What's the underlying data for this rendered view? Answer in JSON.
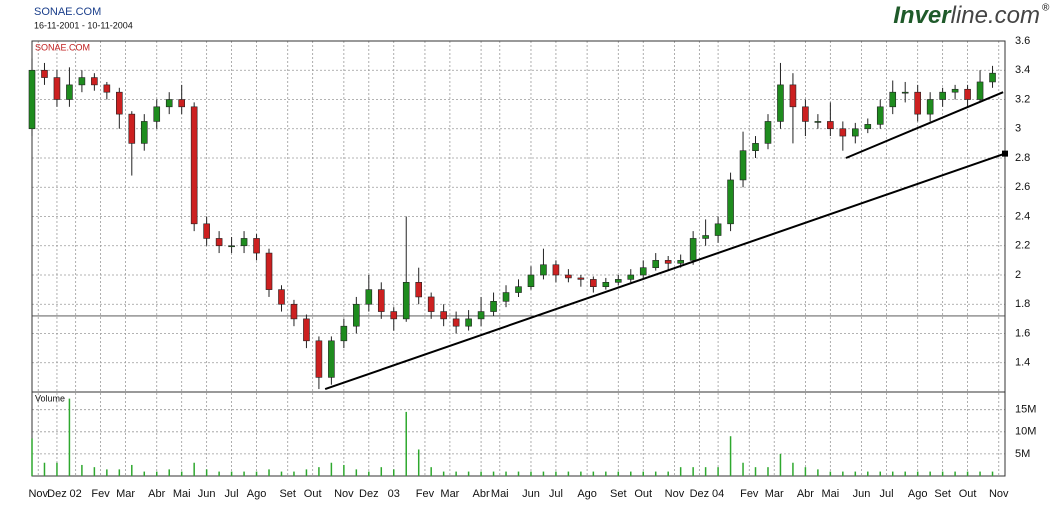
{
  "chart_data": {
    "type": "candlestick",
    "title": "SONAE.COM",
    "subtitle": "16-11-2001 - 10-11-2004",
    "label": "SONAE.COM",
    "up_color": "#1e8c1e",
    "down_color": "#cc2020",
    "grid": true,
    "x": [
      0,
      2,
      4,
      6,
      8,
      10,
      12,
      14,
      16,
      18,
      20,
      22,
      24,
      26,
      28,
      30,
      32,
      34,
      36,
      38,
      40,
      42,
      44,
      46,
      48,
      50,
      52,
      54,
      56,
      58,
      60,
      62,
      64,
      66,
      68,
      70,
      72,
      74,
      76,
      78,
      80,
      82,
      84,
      86,
      88,
      90,
      92,
      94,
      96,
      98,
      100,
      102,
      104,
      106,
      108,
      110,
      112,
      114,
      116,
      118,
      120,
      122,
      124,
      126,
      128,
      130,
      132,
      134,
      136,
      138,
      140,
      142,
      144,
      146,
      148,
      150,
      152,
      154
    ],
    "open": [
      3.0,
      3.4,
      3.35,
      3.2,
      3.3,
      3.35,
      3.3,
      3.25,
      3.1,
      2.9,
      3.05,
      3.15,
      3.2,
      3.15,
      2.35,
      2.25,
      2.2,
      2.2,
      2.25,
      2.15,
      1.9,
      1.8,
      1.7,
      1.55,
      1.3,
      1.55,
      1.65,
      1.8,
      1.9,
      1.75,
      1.7,
      1.95,
      1.85,
      1.75,
      1.7,
      1.65,
      1.7,
      1.75,
      1.82,
      1.88,
      1.92,
      2.0,
      2.07,
      2.0,
      1.98,
      1.97,
      1.92,
      1.95,
      1.97,
      2.0,
      2.05,
      2.1,
      2.08,
      2.1,
      2.25,
      2.27,
      2.35,
      2.65,
      2.85,
      2.9,
      3.05,
      3.3,
      3.15,
      3.05,
      3.05,
      3.0,
      2.95,
      3.0,
      3.03,
      3.15,
      3.25,
      3.25,
      3.1,
      3.2,
      3.25,
      3.27,
      3.2,
      3.32
    ],
    "high": [
      3.48,
      3.45,
      3.4,
      3.42,
      3.4,
      3.38,
      3.32,
      3.28,
      3.12,
      3.1,
      3.2,
      3.25,
      3.3,
      3.18,
      2.4,
      2.3,
      2.26,
      2.3,
      2.28,
      2.18,
      1.93,
      1.83,
      1.73,
      1.58,
      1.58,
      1.7,
      1.85,
      2.0,
      1.95,
      1.78,
      2.4,
      2.05,
      1.88,
      1.8,
      1.75,
      1.76,
      1.85,
      1.88,
      1.93,
      1.97,
      2.06,
      2.18,
      2.1,
      2.04,
      2.0,
      1.99,
      1.98,
      2.0,
      2.04,
      2.1,
      2.15,
      2.13,
      2.14,
      2.3,
      2.38,
      2.4,
      2.7,
      2.98,
      2.95,
      3.1,
      3.45,
      3.38,
      3.2,
      3.1,
      3.18,
      3.05,
      3.04,
      3.07,
      3.2,
      3.33,
      3.32,
      3.3,
      3.25,
      3.28,
      3.3,
      3.3,
      3.4,
      3.43
    ],
    "low": [
      2.95,
      3.3,
      3.15,
      3.15,
      3.25,
      3.26,
      3.2,
      3.0,
      2.68,
      2.85,
      3.0,
      3.1,
      3.1,
      2.3,
      2.2,
      2.15,
      2.15,
      2.15,
      2.1,
      1.85,
      1.75,
      1.65,
      1.5,
      1.22,
      1.25,
      1.5,
      1.6,
      1.75,
      1.7,
      1.62,
      1.68,
      1.8,
      1.7,
      1.65,
      1.6,
      1.62,
      1.65,
      1.72,
      1.78,
      1.85,
      1.9,
      1.97,
      1.95,
      1.95,
      1.92,
      1.88,
      1.9,
      1.93,
      1.95,
      1.98,
      2.03,
      2.03,
      2.05,
      2.07,
      2.2,
      2.22,
      2.3,
      2.6,
      2.8,
      2.86,
      3.0,
      2.9,
      2.95,
      3.0,
      2.95,
      2.85,
      2.9,
      2.97,
      3.0,
      3.1,
      3.18,
      3.05,
      3.05,
      3.15,
      3.2,
      3.15,
      3.18,
      3.28
    ],
    "close": [
      3.4,
      3.35,
      3.2,
      3.3,
      3.35,
      3.3,
      3.25,
      3.1,
      2.9,
      3.05,
      3.15,
      3.2,
      3.15,
      2.35,
      2.25,
      2.2,
      2.2,
      2.25,
      2.15,
      1.9,
      1.8,
      1.7,
      1.55,
      1.3,
      1.55,
      1.65,
      1.8,
      1.9,
      1.75,
      1.7,
      1.95,
      1.85,
      1.75,
      1.7,
      1.65,
      1.7,
      1.75,
      1.82,
      1.88,
      1.92,
      2.0,
      2.07,
      2.0,
      1.98,
      1.97,
      1.92,
      1.95,
      1.97,
      2.0,
      2.05,
      2.1,
      2.08,
      2.1,
      2.25,
      2.27,
      2.35,
      2.65,
      2.85,
      2.9,
      3.05,
      3.3,
      3.15,
      3.05,
      3.05,
      3.0,
      2.95,
      3.0,
      3.03,
      3.15,
      3.25,
      3.25,
      3.1,
      3.2,
      3.25,
      3.27,
      3.2,
      3.32,
      3.38
    ],
    "xlim": [
      0,
      156
    ],
    "xticks": [
      {
        "value": 1,
        "label": "Nov"
      },
      {
        "value": 4,
        "label": "Dez"
      },
      {
        "value": 7,
        "label": "02"
      },
      {
        "value": 11,
        "label": "Fev"
      },
      {
        "value": 15,
        "label": "Mar"
      },
      {
        "value": 20,
        "label": "Abr"
      },
      {
        "value": 24,
        "label": "Mai"
      },
      {
        "value": 28,
        "label": "Jun"
      },
      {
        "value": 32,
        "label": "Jul"
      },
      {
        "value": 36,
        "label": "Ago"
      },
      {
        "value": 41,
        "label": "Set"
      },
      {
        "value": 45,
        "label": "Out"
      },
      {
        "value": 50,
        "label": "Nov"
      },
      {
        "value": 54,
        "label": "Dez"
      },
      {
        "value": 58,
        "label": "03"
      },
      {
        "value": 63,
        "label": "Fev"
      },
      {
        "value": 67,
        "label": "Mar"
      },
      {
        "value": 72,
        "label": "Abr"
      },
      {
        "value": 75,
        "label": "Mai"
      },
      {
        "value": 80,
        "label": "Jun"
      },
      {
        "value": 84,
        "label": "Jul"
      },
      {
        "value": 89,
        "label": "Ago"
      },
      {
        "value": 94,
        "label": "Set"
      },
      {
        "value": 98,
        "label": "Out"
      },
      {
        "value": 103,
        "label": "Nov"
      },
      {
        "value": 107,
        "label": "Dez"
      },
      {
        "value": 110,
        "label": "04"
      },
      {
        "value": 115,
        "label": "Fev"
      },
      {
        "value": 119,
        "label": "Mar"
      },
      {
        "value": 124,
        "label": "Abr"
      },
      {
        "value": 128,
        "label": "Mai"
      },
      {
        "value": 133,
        "label": "Jun"
      },
      {
        "value": 137,
        "label": "Jul"
      },
      {
        "value": 142,
        "label": "Ago"
      },
      {
        "value": 146,
        "label": "Set"
      },
      {
        "value": 150,
        "label": "Out"
      },
      {
        "value": 155,
        "label": "Nov"
      }
    ],
    "ylim": [
      1.2,
      3.6
    ],
    "yticks": [
      1.4,
      1.6,
      1.8,
      2,
      2.2,
      2.4,
      2.6,
      2.8,
      3,
      3.2,
      3.4,
      3.6
    ],
    "hline": 1.72,
    "trendlines": [
      {
        "x": [
          47,
          156
        ],
        "y": [
          1.22,
          2.83
        ]
      },
      {
        "x": [
          130.5,
          155.7
        ],
        "y": [
          2.8,
          3.25
        ]
      }
    ],
    "volume": {
      "name": "Volume",
      "color": "#2ea82e",
      "values": [
        8.5,
        3,
        3,
        17.5,
        2.5,
        2,
        1.5,
        1.5,
        2.5,
        1,
        1,
        1.5,
        1,
        3,
        1.5,
        1,
        1,
        1,
        1,
        1.5,
        1,
        1,
        1.5,
        2,
        3,
        2.5,
        1.5,
        1,
        2,
        1.5,
        14.5,
        6,
        2,
        1,
        1,
        1,
        1,
        1,
        1,
        1,
        1,
        1,
        1,
        1,
        1,
        1,
        1,
        1,
        1,
        1,
        1,
        1,
        2,
        2,
        2,
        2,
        9,
        3,
        2,
        2,
        5,
        3,
        2,
        1.5,
        1,
        1,
        1,
        1,
        1,
        1,
        1,
        1,
        1,
        1,
        1,
        1,
        1,
        1
      ],
      "ylim": [
        0,
        19
      ],
      "yticks": [
        {
          "value": 5,
          "label": "5M"
        },
        {
          "value": 10,
          "label": "10M"
        },
        {
          "value": 15,
          "label": "15M"
        }
      ]
    }
  },
  "logo": {
    "part1": "Inver",
    "part2": "line.com",
    "mark": "®"
  }
}
